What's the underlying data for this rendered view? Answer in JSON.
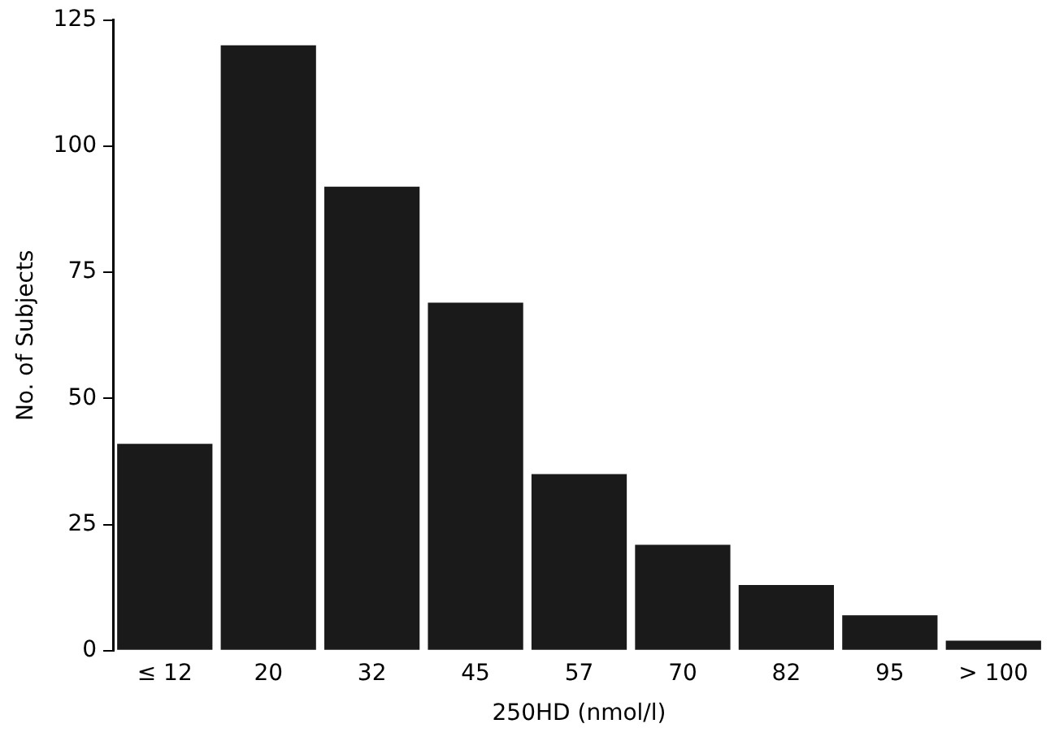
{
  "chart_data": {
    "type": "bar",
    "xlabel": "250HD (nmol/l)",
    "ylabel": "No. of Subjects",
    "categories": [
      "≤ 12",
      "20",
      "32",
      "45",
      "57",
      "70",
      "82",
      "95",
      "> 100"
    ],
    "values": [
      41,
      120,
      92,
      69,
      35,
      21,
      13,
      7,
      2
    ],
    "color": "#1a1a1a",
    "ylim": [
      0,
      125
    ],
    "yticks": [
      0,
      25,
      50,
      75,
      100,
      125
    ],
    "grid": false
  }
}
